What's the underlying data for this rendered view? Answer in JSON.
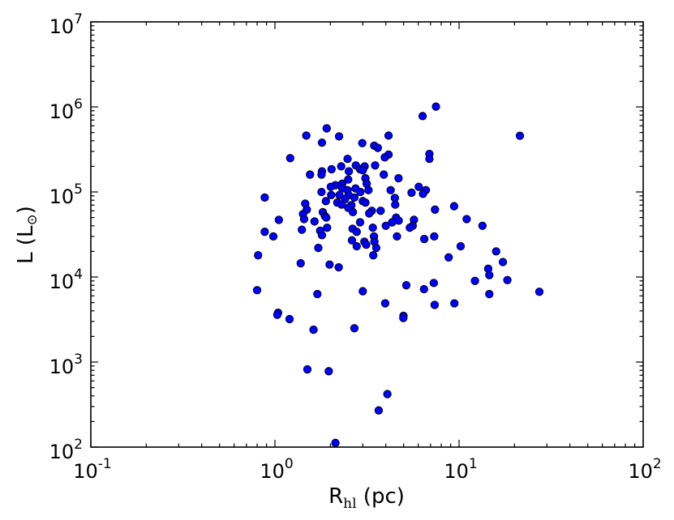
{
  "chart_data": {
    "type": "scatter",
    "x_scale": "log",
    "y_scale": "log",
    "xlim": [
      0.1,
      100
    ],
    "ylim": [
      100,
      10000000
    ],
    "xlabel": {
      "main": "R",
      "sub": "hl",
      "suffix": " (pc)"
    },
    "ylabel": {
      "main": "L (L",
      "sub": "⊙",
      "suffix": ")"
    },
    "x_ticks": [
      {
        "base": "10",
        "exp": "-1",
        "value": 0.1
      },
      {
        "base": "10",
        "exp": "0",
        "value": 1
      },
      {
        "base": "10",
        "exp": "1",
        "value": 10
      },
      {
        "base": "10",
        "exp": "2",
        "value": 100
      }
    ],
    "y_ticks": [
      {
        "base": "10",
        "exp": "2",
        "value": 100
      },
      {
        "base": "10",
        "exp": "3",
        "value": 1000
      },
      {
        "base": "10",
        "exp": "4",
        "value": 10000
      },
      {
        "base": "10",
        "exp": "5",
        "value": 100000
      },
      {
        "base": "10",
        "exp": "6",
        "value": 1000000
      },
      {
        "base": "10",
        "exp": "7",
        "value": 10000000
      }
    ],
    "grid": false,
    "marker_color": "#0000ff",
    "marker_edge_color": "#000000",
    "points": [
      [
        7.49,
        1008000
      ],
      [
        6.34,
        780000
      ],
      [
        21.4,
        458000
      ],
      [
        1.91,
        560000
      ],
      [
        1.48,
        460000
      ],
      [
        2.23,
        450000
      ],
      [
        1.8,
        380000
      ],
      [
        2.98,
        375000
      ],
      [
        3.46,
        350000
      ],
      [
        3.62,
        330000
      ],
      [
        4.14,
        460000
      ],
      [
        6.9,
        280000
      ],
      [
        6.9,
        245000
      ],
      [
        4.14,
        275000
      ],
      [
        3.95,
        255000
      ],
      [
        1.21,
        250000
      ],
      [
        2.48,
        245000
      ],
      [
        3.5,
        205000
      ],
      [
        2.75,
        205000
      ],
      [
        3.07,
        200000
      ],
      [
        2.9,
        185000
      ],
      [
        2.29,
        200000
      ],
      [
        2.03,
        185000
      ],
      [
        1.8,
        175000
      ],
      [
        1.79,
        160000
      ],
      [
        1.55,
        160000
      ],
      [
        2.52,
        175000
      ],
      [
        3.0,
        180000
      ],
      [
        3.9,
        160000
      ],
      [
        4.69,
        145000
      ],
      [
        3.1,
        145000
      ],
      [
        2.5,
        140000
      ],
      [
        2.32,
        125000
      ],
      [
        2.13,
        120000
      ],
      [
        3.15,
        125000
      ],
      [
        2.74,
        110000
      ],
      [
        2.32,
        110000
      ],
      [
        2.01,
        115000
      ],
      [
        1.79,
        100000
      ],
      [
        2.48,
        105000
      ],
      [
        2.91,
        100000
      ],
      [
        3.22,
        105000
      ],
      [
        4.25,
        105000
      ],
      [
        5.52,
        98000
      ],
      [
        6.04,
        115000
      ],
      [
        6.6,
        105000
      ],
      [
        6.37,
        95000
      ],
      [
        2.02,
        92000
      ],
      [
        2.24,
        92000
      ],
      [
        2.51,
        92000
      ],
      [
        0.88,
        86000
      ],
      [
        2.7,
        86000
      ],
      [
        4.48,
        85000
      ],
      [
        2.4,
        82000
      ],
      [
        3.0,
        78000
      ],
      [
        3.1,
        75000
      ],
      [
        1.89,
        78000
      ],
      [
        2.18,
        75000
      ],
      [
        1.46,
        73000
      ],
      [
        2.3,
        71000
      ],
      [
        2.6,
        70000
      ],
      [
        4.5,
        71000
      ],
      [
        2.5,
        65000
      ],
      [
        9.4,
        68000
      ],
      [
        1.49,
        62000
      ],
      [
        1.82,
        58000
      ],
      [
        3.75,
        60000
      ],
      [
        3.36,
        60000
      ],
      [
        3.25,
        56000
      ],
      [
        2.65,
        58000
      ],
      [
        7.4,
        62000
      ],
      [
        1.42,
        55000
      ],
      [
        1.87,
        52000
      ],
      [
        1.9,
        50000
      ],
      [
        4.55,
        50000
      ],
      [
        5.69,
        47000
      ],
      [
        1.05,
        47000
      ],
      [
        1.44,
        48000
      ],
      [
        11.0,
        48000
      ],
      [
        4.7,
        46000
      ],
      [
        4.33,
        44000
      ],
      [
        1.64,
        45000
      ],
      [
        2.9,
        44000
      ],
      [
        5.6,
        40000
      ],
      [
        5.4,
        38000
      ],
      [
        13.4,
        40000
      ],
      [
        1.4,
        36000
      ],
      [
        1.76,
        35000
      ],
      [
        1.92,
        38000
      ],
      [
        2.64,
        37000
      ],
      [
        3.4,
        38000
      ],
      [
        4.0,
        40000
      ],
      [
        0.88,
        34000
      ],
      [
        0.98,
        30000
      ],
      [
        1.8,
        31000
      ],
      [
        2.78,
        34000
      ],
      [
        3.45,
        30000
      ],
      [
        4.6,
        30000
      ],
      [
        6.47,
        28000
      ],
      [
        7.33,
        30000
      ],
      [
        2.62,
        27000
      ],
      [
        3.06,
        26000
      ],
      [
        3.47,
        26000
      ],
      [
        3.13,
        24000
      ],
      [
        2.78,
        23000
      ],
      [
        10.2,
        23000
      ],
      [
        1.72,
        22000
      ],
      [
        3.55,
        22000
      ],
      [
        15.9,
        20000
      ],
      [
        0.81,
        18000
      ],
      [
        3.42,
        18000
      ],
      [
        8.78,
        17000
      ],
      [
        17.3,
        15000
      ],
      [
        1.38,
        14500
      ],
      [
        1.98,
        14000
      ],
      [
        2.22,
        13000
      ],
      [
        14.4,
        12500
      ],
      [
        14.6,
        10500
      ],
      [
        7.29,
        8500
      ],
      [
        12.2,
        9000
      ],
      [
        18.3,
        9200
      ],
      [
        5.17,
        8000
      ],
      [
        6.45,
        7200
      ],
      [
        0.8,
        7000
      ],
      [
        3.0,
        6800
      ],
      [
        1.7,
        6300
      ],
      [
        14.6,
        6300
      ],
      [
        27.3,
        6700
      ],
      [
        3.97,
        4900
      ],
      [
        7.37,
        4700
      ],
      [
        9.43,
        4900
      ],
      [
        1.04,
        3800
      ],
      [
        1.03,
        3600
      ],
      [
        1.2,
        3200
      ],
      [
        4.99,
        3500
      ],
      [
        4.98,
        3300
      ],
      [
        1.62,
        2400
      ],
      [
        2.7,
        2500
      ],
      [
        1.5,
        820
      ],
      [
        1.96,
        780
      ],
      [
        4.08,
        420
      ],
      [
        3.66,
        270
      ],
      [
        2.13,
        112
      ]
    ]
  }
}
